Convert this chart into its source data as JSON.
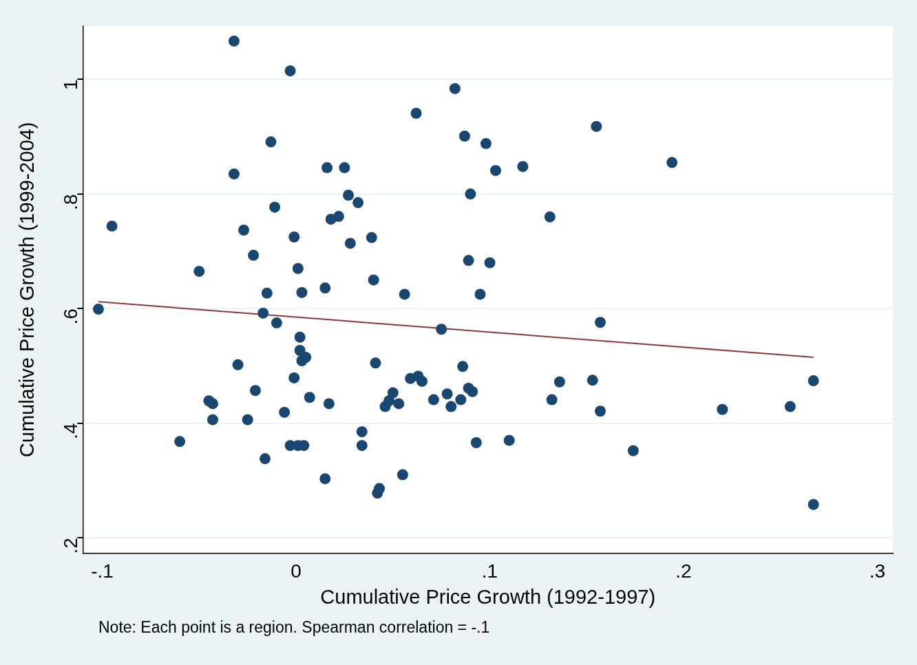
{
  "chart_data": {
    "type": "scatter",
    "xlabel": "Cumulative Price Growth (1992-1997)",
    "ylabel": "Cumulative Price Growth (1999-2004)",
    "annotations": [
      "Note: Each point is a region. Spearman correlation = -.1"
    ],
    "xlim": [
      -0.11,
      0.308
    ],
    "ylim": [
      0.173,
      1.093
    ],
    "xticks": [
      {
        "value": -0.1,
        "label": "-.1"
      },
      0,
      {
        "value": 0.1,
        "label": ".1"
      },
      {
        "value": 0.2,
        "label": ".2"
      },
      {
        "value": 0.3,
        "label": ".3"
      }
    ],
    "yticks": [
      {
        "value": 0.2,
        "label": ".2"
      },
      {
        "value": 0.4,
        "label": ".4"
      },
      {
        "value": 0.6,
        "label": ".6"
      },
      {
        "value": 0.8,
        "label": ".8"
      },
      1
    ],
    "grid": "y",
    "legend": false,
    "marker": "circle",
    "series": [
      {
        "color": "#1a476f",
        "x": [
          -0.102,
          -0.095,
          -0.06,
          -0.05,
          -0.045,
          -0.043,
          -0.043,
          -0.032,
          -0.032,
          -0.03,
          -0.027,
          -0.025,
          -0.022,
          -0.021,
          -0.016,
          -0.017,
          -0.015,
          -0.013,
          -0.011,
          -0.01,
          -0.006,
          -0.003,
          -0.001,
          -0.003,
          -0.001,
          0.001,
          0.001,
          0.002,
          0.002,
          0.003,
          0.003,
          0.004,
          0.005,
          0.007,
          0.015,
          0.015,
          0.016,
          0.017,
          0.018,
          0.022,
          0.025,
          0.027,
          0.028,
          0.032,
          0.034,
          0.034,
          0.039,
          0.04,
          0.041,
          0.042,
          0.043,
          0.046,
          0.048,
          0.05,
          0.053,
          0.055,
          0.056,
          0.059,
          0.062,
          0.063,
          0.065,
          0.071,
          0.075,
          0.078,
          0.08,
          0.082,
          0.085,
          0.086,
          0.087,
          0.089,
          0.089,
          0.091,
          0.09,
          0.093,
          0.095,
          0.098,
          0.1,
          0.103,
          0.11,
          0.117,
          0.131,
          0.132,
          0.136,
          0.153,
          0.155,
          0.157,
          0.157,
          0.174,
          0.194,
          0.22,
          0.255,
          0.267,
          0.267
        ],
        "values": [
          0.599,
          0.744,
          0.368,
          0.665,
          0.439,
          0.434,
          0.406,
          1.067,
          0.835,
          0.502,
          0.737,
          0.406,
          0.693,
          0.457,
          0.338,
          0.592,
          0.627,
          0.891,
          0.777,
          0.575,
          0.419,
          1.015,
          0.725,
          0.361,
          0.479,
          0.361,
          0.67,
          0.55,
          0.527,
          0.509,
          0.628,
          0.361,
          0.515,
          0.445,
          0.636,
          0.303,
          0.846,
          0.434,
          0.756,
          0.761,
          0.846,
          0.798,
          0.714,
          0.785,
          0.385,
          0.361,
          0.724,
          0.65,
          0.505,
          0.278,
          0.286,
          0.429,
          0.439,
          0.453,
          0.434,
          0.31,
          0.625,
          0.478,
          0.941,
          0.482,
          0.473,
          0.441,
          0.564,
          0.451,
          0.429,
          0.984,
          0.441,
          0.499,
          0.901,
          0.684,
          0.461,
          0.455,
          0.8,
          0.366,
          0.625,
          0.888,
          0.68,
          0.841,
          0.37,
          0.848,
          0.76,
          0.441,
          0.472,
          0.475,
          0.918,
          0.576,
          0.421,
          0.352,
          0.855,
          0.424,
          0.429,
          0.474,
          0.258
        ]
      },
      {
        "type": "line",
        "color": "#90353b",
        "line_style": "solid",
        "marker": "none",
        "x": [
          -0.102,
          0.267
        ],
        "values": [
          0.612,
          0.515
        ]
      }
    ]
  }
}
